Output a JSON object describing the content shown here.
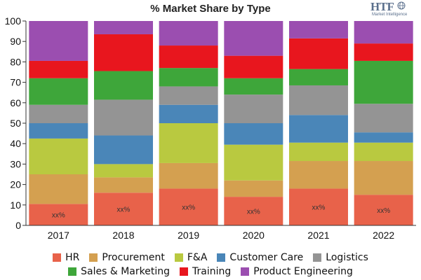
{
  "title": "% Market Share by Type",
  "logo": {
    "main": "HTF",
    "sub": "Market Intelligence"
  },
  "chart_data": {
    "type": "bar",
    "stacked": true,
    "categories": [
      "2017",
      "2018",
      "2019",
      "2020",
      "2021",
      "2022"
    ],
    "ylim": [
      0,
      100
    ],
    "yticks": [
      0,
      10,
      20,
      30,
      40,
      50,
      60,
      70,
      80,
      90,
      100
    ],
    "grid": false,
    "legend_placement": "bottom",
    "inner_label": "xx%",
    "series": [
      {
        "name": "HR",
        "color": "#e8624a",
        "values": [
          10.5,
          16,
          18,
          14,
          18,
          15
        ]
      },
      {
        "name": "Procurement",
        "color": "#d4a050",
        "values": [
          14.5,
          7.5,
          12.5,
          8,
          13.5,
          16.5
        ]
      },
      {
        "name": "F&A",
        "color": "#b9c940",
        "values": [
          17.5,
          6.5,
          19.5,
          17.5,
          9,
          9
        ]
      },
      {
        "name": "Customer Care",
        "color": "#4a86b8",
        "values": [
          7.5,
          14,
          9,
          10.5,
          13.5,
          5
        ]
      },
      {
        "name": "Logistics",
        "color": "#949494",
        "values": [
          9,
          17.5,
          9,
          14,
          14.5,
          14
        ]
      },
      {
        "name": "Sales & Marketing",
        "color": "#3ea63a",
        "values": [
          13,
          14,
          9,
          8,
          8,
          21
        ]
      },
      {
        "name": "Training",
        "color": "#e8161e",
        "values": [
          8.5,
          18,
          11,
          11,
          15,
          8.5
        ]
      },
      {
        "name": "Product Engineering",
        "color": "#9b4eb0",
        "values": [
          19.5,
          6.5,
          12,
          17,
          8.5,
          11
        ]
      }
    ]
  },
  "legend_rows": [
    [
      0,
      1,
      2,
      3,
      4
    ],
    [
      5,
      6,
      7
    ]
  ]
}
